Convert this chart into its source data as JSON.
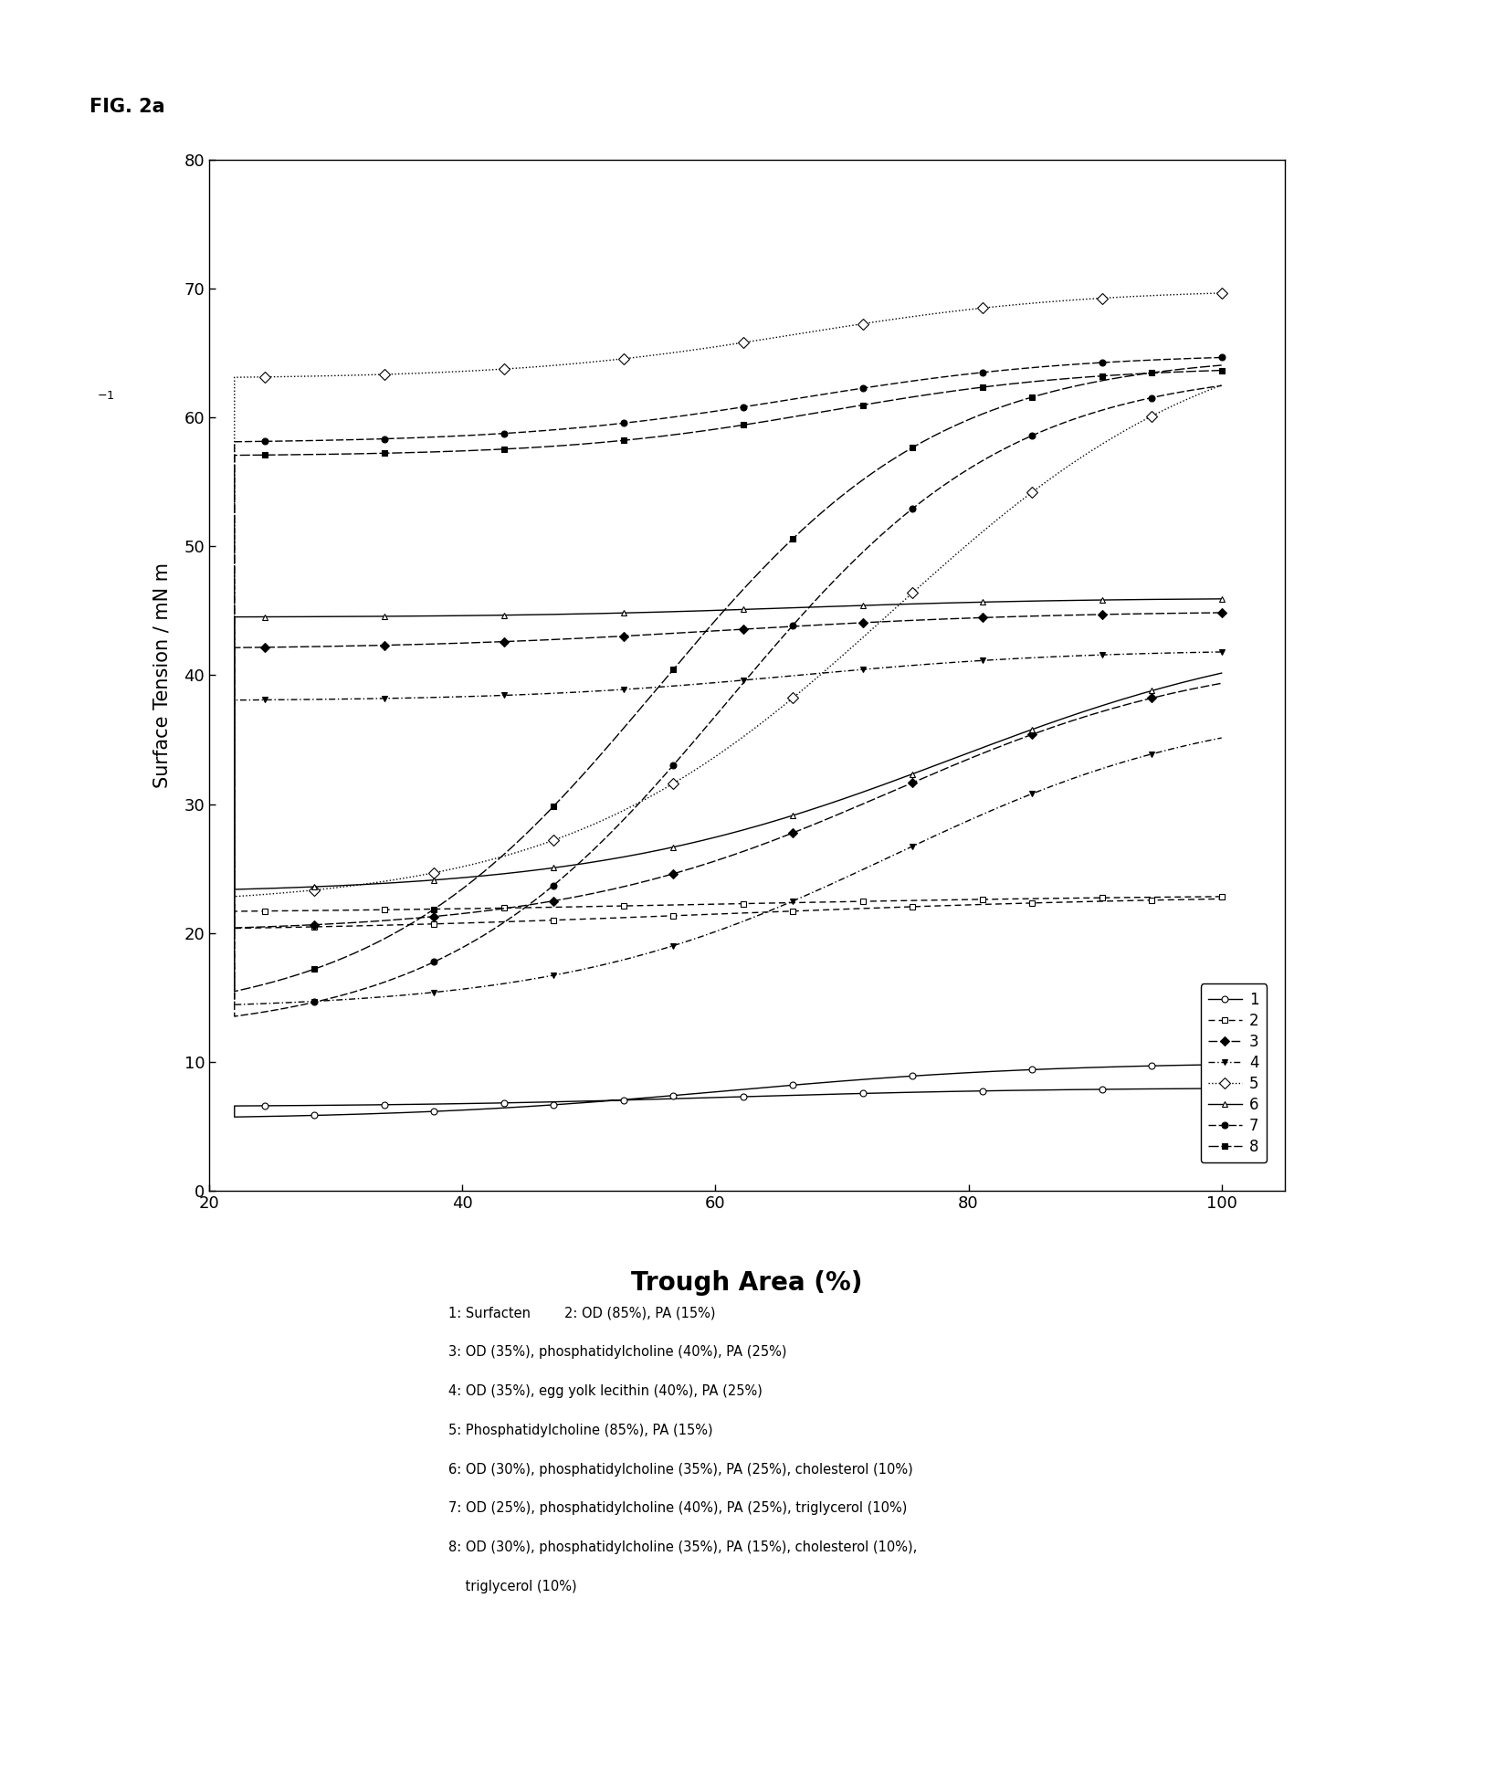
{
  "fig_label": "FIG. 2a",
  "xlabel": "Trough Area (%)",
  "ylabel": "Surface Tension / mN m",
  "xlim": [
    20,
    105
  ],
  "ylim": [
    0,
    80
  ],
  "xticks": [
    20,
    40,
    60,
    80,
    100
  ],
  "yticks": [
    0,
    10,
    20,
    30,
    40,
    50,
    60,
    70,
    80
  ],
  "legend_labels": [
    "1",
    "2",
    "3",
    "4",
    "5",
    "6",
    "7",
    "8"
  ],
  "caption_lines": [
    "1: Surfacten        2: OD (85%), PA (15%)",
    "3: OD (35%), phosphatidylcholine (40%), PA (25%)",
    "4: OD (35%), egg yolk lecithin (40%), PA (25%)",
    "5: Phosphatidylcholine (85%), PA (15%)",
    "6: OD (30%), phosphatidylcholine (35%), PA (25%), cholesterol (10%)",
    "7: OD (25%), phosphatidylcholine (40%), PA (25%), triglycerol (10%)",
    "8: OD (30%), phosphatidylcholine (35%), PA (15%), cholesterol (10%),",
    "    triglycerol (10%)"
  ]
}
